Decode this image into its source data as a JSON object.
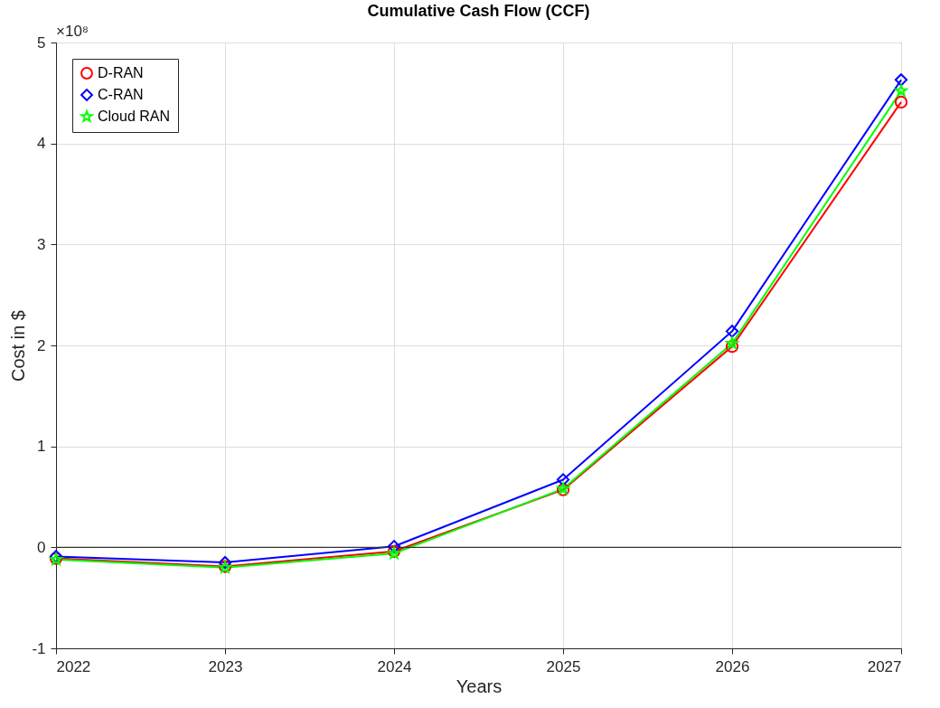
{
  "chart_data": {
    "type": "line",
    "title": "Cumulative Cash Flow (CCF)",
    "xlabel": "Years",
    "ylabel": "Cost in $",
    "annotations": [
      "×10⁸"
    ],
    "x": [
      2022,
      2023,
      2024,
      2025,
      2026,
      2027
    ],
    "series": [
      {
        "name": "D-RAN",
        "color": "#ff0000",
        "marker": "circle",
        "values": [
          -0.11,
          -0.19,
          -0.04,
          0.57,
          1.99,
          4.41
        ]
      },
      {
        "name": "C-RAN",
        "color": "#0000ff",
        "marker": "diamond",
        "values": [
          -0.09,
          -0.15,
          0.01,
          0.67,
          2.14,
          4.63
        ]
      },
      {
        "name": "Cloud RAN",
        "color": "#00ff00",
        "marker": "star",
        "values": [
          -0.12,
          -0.2,
          -0.06,
          0.58,
          2.02,
          4.52
        ]
      }
    ],
    "xlim": [
      2022,
      2027
    ],
    "xticks": [
      2022,
      2023,
      2024,
      2025,
      2026,
      2027
    ],
    "ylim": [
      -1,
      5
    ],
    "yticks": [
      -1,
      0,
      1,
      2,
      3,
      4,
      5
    ],
    "ref_lines": [
      {
        "axis": "y",
        "value": 0,
        "color": "#333333"
      }
    ],
    "grid": true,
    "legend": "top left",
    "line_style": "solid"
  }
}
